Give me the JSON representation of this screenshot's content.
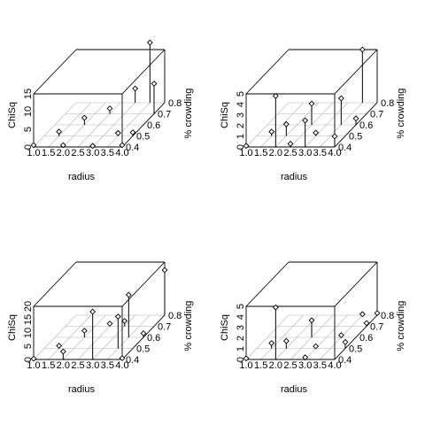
{
  "chart_data": [
    {
      "type": "scatter3d",
      "title": "",
      "xlabel": "radius",
      "ylabel": "% crowding",
      "zlabel": "ChiSq",
      "xlim": [
        1.0,
        4.0
      ],
      "ylim": [
        0.4,
        0.8
      ],
      "zlim": [
        0,
        15
      ],
      "x_ticks": [
        "1.0",
        "1.5",
        "2.0",
        "2.5",
        "3.0",
        "3.5",
        "4.0"
      ],
      "y_ticks": [
        "0.4",
        "0.5",
        "0.6",
        "0.7",
        "0.8"
      ],
      "z_ticks": [
        "0",
        "5",
        "10",
        "15"
      ],
      "grid": "on",
      "points": [
        {
          "x": 1.0,
          "y": 0.4,
          "z": 0.5
        },
        {
          "x": 1.5,
          "y": 0.5,
          "z": 1.2
        },
        {
          "x": 2.0,
          "y": 0.6,
          "z": 2.0
        },
        {
          "x": 2.5,
          "y": 0.7,
          "z": 1.5
        },
        {
          "x": 3.0,
          "y": 0.8,
          "z": 4.0
        },
        {
          "x": 2.0,
          "y": 0.4,
          "z": 0.5
        },
        {
          "x": 3.0,
          "y": 0.4,
          "z": 0.3
        },
        {
          "x": 3.5,
          "y": 0.8,
          "z": 17.0
        },
        {
          "x": 4.0,
          "y": 0.7,
          "z": 8.5
        },
        {
          "x": 4.0,
          "y": 0.5,
          "z": 1.0
        },
        {
          "x": 3.5,
          "y": 0.5,
          "z": 0.8
        },
        {
          "x": 4.0,
          "y": 0.4,
          "z": 0.5
        }
      ]
    },
    {
      "type": "scatter3d",
      "title": "",
      "xlabel": "radius",
      "ylabel": "% crowding",
      "zlabel": "ChiSq",
      "xlim": [
        1.0,
        4.0
      ],
      "ylim": [
        0.4,
        0.8
      ],
      "zlim": [
        0,
        5
      ],
      "x_ticks": [
        "1.0",
        "1.5",
        "2.0",
        "2.5",
        "3.0",
        "3.5",
        "4.0"
      ],
      "y_ticks": [
        "0.4",
        "0.5",
        "0.6",
        "0.7",
        "0.8"
      ],
      "z_ticks": [
        "0",
        "1",
        "2",
        "3",
        "4",
        "5"
      ],
      "grid": "on",
      "points": [
        {
          "x": 1.0,
          "y": 0.4,
          "z": 0.1
        },
        {
          "x": 1.5,
          "y": 0.5,
          "z": 0.4
        },
        {
          "x": 2.0,
          "y": 0.5,
          "z": 1.1
        },
        {
          "x": 2.0,
          "y": 0.4,
          "z": 4.8
        },
        {
          "x": 2.5,
          "y": 0.6,
          "z": 2.0
        },
        {
          "x": 2.5,
          "y": 0.4,
          "z": 0.3
        },
        {
          "x": 3.0,
          "y": 0.5,
          "z": 0.3
        },
        {
          "x": 3.0,
          "y": 0.4,
          "z": 2.5
        },
        {
          "x": 3.5,
          "y": 0.6,
          "z": 2.5
        },
        {
          "x": 4.0,
          "y": 0.4,
          "z": 1.0
        },
        {
          "x": 3.5,
          "y": 0.8,
          "z": 5.0
        },
        {
          "x": 4.0,
          "y": 0.6,
          "z": 0.6
        }
      ]
    },
    {
      "type": "scatter3d",
      "title": "",
      "xlabel": "radius",
      "ylabel": "% crowding",
      "zlabel": "ChiSq",
      "xlim": [
        1.0,
        4.0
      ],
      "ylim": [
        0.4,
        0.8
      ],
      "zlim": [
        0,
        20
      ],
      "x_ticks": [
        "1.0",
        "1.5",
        "2.0",
        "2.5",
        "3.0",
        "3.5",
        "4.0"
      ],
      "y_ticks": [
        "0.4",
        "0.5",
        "0.6",
        "0.7",
        "0.8"
      ],
      "z_ticks": [
        "0",
        "5",
        "10",
        "15",
        "20"
      ],
      "grid": "on",
      "points": [
        {
          "x": 1.0,
          "y": 0.4,
          "z": 0.3
        },
        {
          "x": 1.5,
          "y": 0.5,
          "z": 1.0
        },
        {
          "x": 2.0,
          "y": 0.6,
          "z": 2.5
        },
        {
          "x": 2.0,
          "y": 0.4,
          "z": 3.0
        },
        {
          "x": 2.5,
          "y": 0.7,
          "z": 1.0
        },
        {
          "x": 3.0,
          "y": 0.7,
          "z": 2.0
        },
        {
          "x": 3.0,
          "y": 0.4,
          "z": 18.0
        },
        {
          "x": 3.5,
          "y": 0.6,
          "z": 16.0
        },
        {
          "x": 3.5,
          "y": 0.5,
          "z": 12.0
        },
        {
          "x": 4.0,
          "y": 0.4,
          "z": 0.5
        },
        {
          "x": 4.0,
          "y": 0.6,
          "z": 1.5
        },
        {
          "x": 4.0,
          "y": 0.8,
          "z": 17.0
        }
      ]
    },
    {
      "type": "scatter3d",
      "title": "",
      "xlabel": "radius",
      "ylabel": "% crowding",
      "zlabel": "ChiSq",
      "xlim": [
        1.0,
        4.0
      ],
      "ylim": [
        0.4,
        0.8
      ],
      "zlim": [
        0,
        5
      ],
      "x_ticks": [
        "1.0",
        "1.5",
        "2.0",
        "2.5",
        "3.0",
        "3.5",
        "4.0"
      ],
      "y_ticks": [
        "0.4",
        "0.5",
        "0.6",
        "0.7",
        "0.8"
      ],
      "z_ticks": [
        "0",
        "1",
        "2",
        "3",
        "4",
        "5"
      ],
      "grid": "on",
      "points": [
        {
          "x": 1.0,
          "y": 0.4,
          "z": 0.1
        },
        {
          "x": 1.5,
          "y": 0.5,
          "z": 0.5
        },
        {
          "x": 2.0,
          "y": 0.5,
          "z": 0.7
        },
        {
          "x": 2.0,
          "y": 0.4,
          "z": 4.9
        },
        {
          "x": 2.5,
          "y": 0.6,
          "z": 1.6
        },
        {
          "x": 3.0,
          "y": 0.5,
          "z": 0.2
        },
        {
          "x": 3.0,
          "y": 0.4,
          "z": 0.2
        },
        {
          "x": 3.5,
          "y": 0.6,
          "z": 0.2
        },
        {
          "x": 4.0,
          "y": 0.5,
          "z": 0.6
        },
        {
          "x": 4.0,
          "y": 0.7,
          "z": 0.3
        },
        {
          "x": 4.0,
          "y": 0.8,
          "z": 0.2
        },
        {
          "x": 3.5,
          "y": 0.8,
          "z": 0.1
        }
      ]
    }
  ]
}
